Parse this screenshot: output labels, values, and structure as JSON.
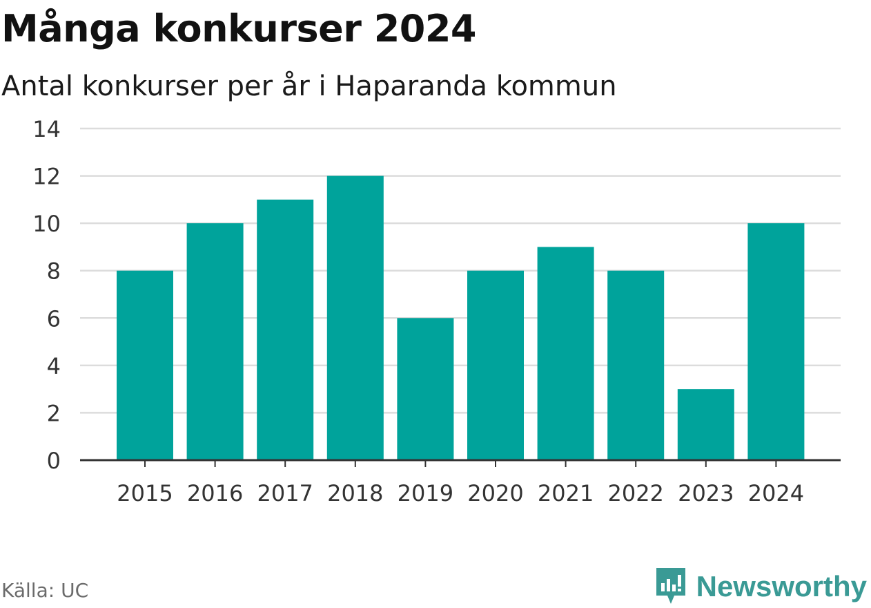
{
  "header": {
    "title": "Många konkurser 2024",
    "subtitle": "Antal konkurser per år i Haparanda kommun"
  },
  "footer": {
    "source": "Källa: UC",
    "brand": "Newsworthy",
    "brand_icon": "newsworthy-logo-icon",
    "brand_color": "#3a9a95"
  },
  "colors": {
    "bar": "#00a39b",
    "grid": "#dcdcdc",
    "axis": "#333333",
    "tick_label": "#333333"
  },
  "chart_data": {
    "type": "bar",
    "title": "Många konkurser 2024",
    "subtitle": "Antal konkurser per år i Haparanda kommun",
    "xlabel": "",
    "ylabel": "",
    "categories": [
      "2015",
      "2016",
      "2017",
      "2018",
      "2019",
      "2020",
      "2021",
      "2022",
      "2023",
      "2024"
    ],
    "values": [
      8,
      10,
      11,
      12,
      6,
      8,
      9,
      8,
      3,
      10
    ],
    "ylim": [
      0,
      14
    ],
    "yticks": [
      0,
      2,
      4,
      6,
      8,
      10,
      12,
      14
    ],
    "grid": true,
    "legend": "none"
  }
}
